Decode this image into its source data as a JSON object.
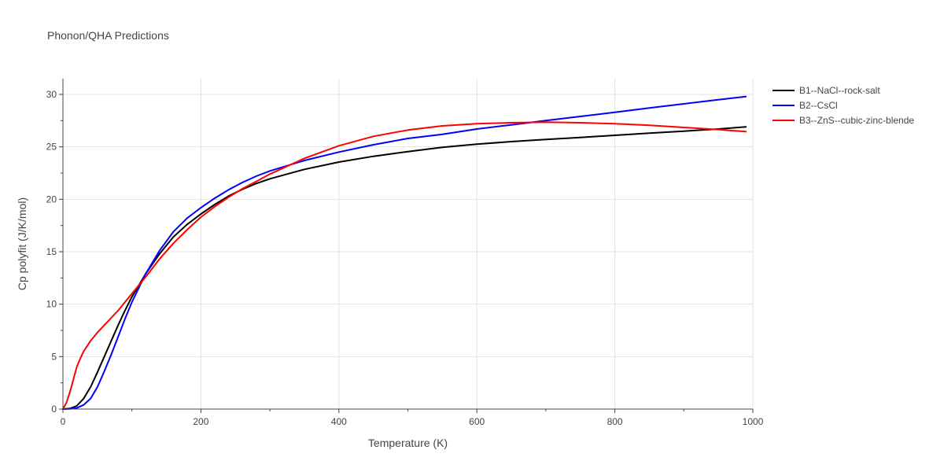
{
  "chart_data": {
    "type": "line",
    "title": "Phonon/QHA Predictions",
    "xlabel": "Temperature (K)",
    "ylabel": "Cp polyfit (J/K/mol)",
    "xlim": [
      0,
      1000
    ],
    "ylim": [
      0,
      31.5
    ],
    "xticks": [
      0,
      200,
      400,
      600,
      800,
      1000
    ],
    "xtick_labels": [
      "0",
      "200",
      "400",
      "600",
      "800",
      "1000"
    ],
    "xminor": [
      100,
      300,
      500,
      700,
      900
    ],
    "yticks": [
      0,
      5,
      10,
      15,
      20,
      25,
      30
    ],
    "ytick_labels": [
      "0",
      "5",
      "10",
      "15",
      "20",
      "25",
      "30"
    ],
    "grid": true,
    "legend_position": "top-right outside",
    "series": [
      {
        "name": "B1--NaCl--rock-salt",
        "color": "#000000",
        "x": [
          0,
          10,
          20,
          30,
          40,
          50,
          60,
          70,
          80,
          90,
          100,
          120,
          140,
          160,
          180,
          200,
          220,
          240,
          260,
          280,
          300,
          350,
          400,
          450,
          500,
          550,
          600,
          650,
          700,
          750,
          800,
          850,
          900,
          950,
          990
        ],
        "y": [
          0,
          0.05,
          0.3,
          1.0,
          2.1,
          3.5,
          5.0,
          6.5,
          8.0,
          9.4,
          10.7,
          12.9,
          14.8,
          16.4,
          17.6,
          18.6,
          19.5,
          20.3,
          20.95,
          21.5,
          21.95,
          22.85,
          23.55,
          24.1,
          24.55,
          24.95,
          25.25,
          25.5,
          25.7,
          25.9,
          26.1,
          26.3,
          26.5,
          26.7,
          26.9
        ]
      },
      {
        "name": "B2--CsCl",
        "color": "#0000ff",
        "x": [
          0,
          10,
          20,
          30,
          40,
          50,
          60,
          70,
          80,
          90,
          100,
          120,
          140,
          160,
          180,
          200,
          220,
          240,
          260,
          280,
          300,
          350,
          400,
          450,
          500,
          550,
          600,
          650,
          700,
          750,
          800,
          850,
          900,
          950,
          990
        ],
        "y": [
          0,
          0.02,
          0.1,
          0.4,
          1.0,
          2.1,
          3.6,
          5.2,
          6.9,
          8.6,
          10.2,
          12.9,
          15.1,
          16.9,
          18.2,
          19.2,
          20.1,
          20.9,
          21.6,
          22.2,
          22.7,
          23.7,
          24.5,
          25.2,
          25.8,
          26.2,
          26.7,
          27.1,
          27.5,
          27.9,
          28.3,
          28.7,
          29.1,
          29.5,
          29.8
        ]
      },
      {
        "name": "B3--ZnS--cubic-zinc-blende",
        "color": "#ff0000",
        "x": [
          0,
          5,
          10,
          15,
          20,
          25,
          30,
          40,
          50,
          60,
          70,
          80,
          90,
          100,
          120,
          140,
          160,
          180,
          200,
          220,
          240,
          260,
          280,
          300,
          350,
          400,
          450,
          500,
          550,
          600,
          650,
          700,
          750,
          800,
          850,
          900,
          950,
          990
        ],
        "y": [
          0,
          0.6,
          1.6,
          2.8,
          4.0,
          4.8,
          5.5,
          6.5,
          7.3,
          8.0,
          8.7,
          9.4,
          10.2,
          11.0,
          12.6,
          14.3,
          15.8,
          17.1,
          18.3,
          19.3,
          20.2,
          21.0,
          21.7,
          22.4,
          23.9,
          25.1,
          26.0,
          26.6,
          27.0,
          27.2,
          27.3,
          27.35,
          27.3,
          27.2,
          27.05,
          26.85,
          26.65,
          26.45
        ]
      }
    ]
  }
}
